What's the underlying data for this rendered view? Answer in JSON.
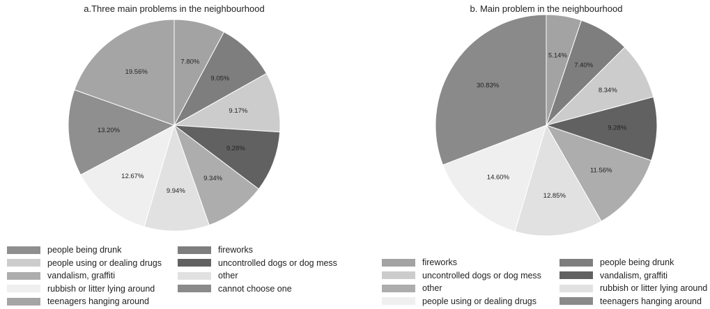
{
  "chart_data": [
    {
      "type": "pie",
      "title": "a.Three main problems in the neighbourhood",
      "slices": [
        {
          "label": "",
          "value": 7.8,
          "value_text": "7.80%",
          "color": "#a3a3a3"
        },
        {
          "label": "",
          "value": 9.05,
          "value_text": "9.05%",
          "color": "#7e7e7e"
        },
        {
          "label": "",
          "value": 9.17,
          "value_text": "9.17%",
          "color": "#cccccc"
        },
        {
          "label": "",
          "value": 9.28,
          "value_text": "9.28%",
          "color": "#616161"
        },
        {
          "label": "",
          "value": 9.34,
          "value_text": "9.34%",
          "color": "#adadad"
        },
        {
          "label": "",
          "value": 9.94,
          "value_text": "9.94%",
          "color": "#e1e1e1"
        },
        {
          "label": "",
          "value": 12.67,
          "value_text": "12.67%",
          "color": "#efefef"
        },
        {
          "label": "",
          "value": 13.2,
          "value_text": "13.20%",
          "color": "#8f8f8f"
        },
        {
          "label": "",
          "value": 19.56,
          "value_text": "19.56%",
          "color": "#a5a5a5"
        }
      ],
      "legend_columns": [
        [
          {
            "label": "people being drunk",
            "color": "#8f8f8f"
          },
          {
            "label": "people using or dealing drugs",
            "color": "#cccccc"
          },
          {
            "label": "vandalism, graffiti",
            "color": "#adadad"
          },
          {
            "label": "rubbish or litter lying around",
            "color": "#efefef"
          },
          {
            "label": "teenagers hanging around",
            "color": "#a5a5a5"
          }
        ],
        [
          {
            "label": "fireworks",
            "color": "#7e7e7e"
          },
          {
            "label": "uncontrolled dogs or dog mess",
            "color": "#616161"
          },
          {
            "label": "other",
            "color": "#e1e1e1"
          },
          {
            "label": "cannot choose one",
            "color": "#8a8a8a"
          }
        ]
      ]
    },
    {
      "type": "pie",
      "title": "b. Main problem in the neighbourhood",
      "slices": [
        {
          "label": "",
          "value": 5.14,
          "value_text": "5.14%",
          "color": "#a3a3a3"
        },
        {
          "label": "",
          "value": 7.4,
          "value_text": "7.40%",
          "color": "#7e7e7e"
        },
        {
          "label": "",
          "value": 8.34,
          "value_text": "8.34%",
          "color": "#cccccc"
        },
        {
          "label": "",
          "value": 9.28,
          "value_text": "9.28%",
          "color": "#616161"
        },
        {
          "label": "",
          "value": 11.56,
          "value_text": "11.56%",
          "color": "#adadad"
        },
        {
          "label": "",
          "value": 12.85,
          "value_text": "12.85%",
          "color": "#e1e1e1"
        },
        {
          "label": "",
          "value": 14.6,
          "value_text": "14.60%",
          "color": "#efefef"
        },
        {
          "label": "",
          "value": 30.83,
          "value_text": "30.83%",
          "color": "#8a8a8a"
        }
      ],
      "legend_columns": [
        [
          {
            "label": "fireworks",
            "color": "#a3a3a3"
          },
          {
            "label": "uncontrolled dogs or dog mess",
            "color": "#cccccc"
          },
          {
            "label": "other",
            "color": "#adadad"
          },
          {
            "label": "people using or dealing drugs",
            "color": "#efefef"
          }
        ],
        [
          {
            "label": "people being drunk",
            "color": "#7e7e7e"
          },
          {
            "label": "vandalism, graffiti",
            "color": "#616161"
          },
          {
            "label": "rubbish or litter lying around",
            "color": "#e1e1e1"
          },
          {
            "label": "teenagers hanging around",
            "color": "#8a8a8a"
          }
        ]
      ]
    }
  ]
}
